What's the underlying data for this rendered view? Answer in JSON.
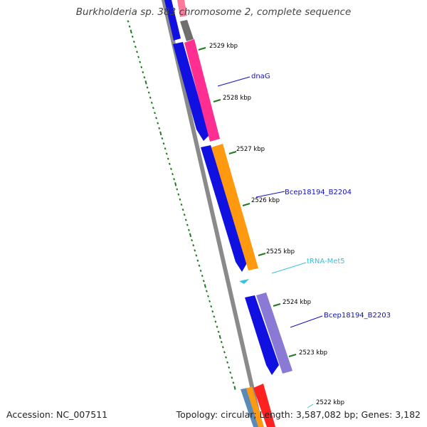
{
  "title": "Burkholderia sp. 383 chromosome 2, complete sequence",
  "footer": {
    "accession": "Accession: NC_007511",
    "topology": "Topology: circular; Length: 3,587,082 bp; Genes: 3,182"
  },
  "colors": {
    "backbone": "#808080",
    "tick": "#1f7a1f",
    "cds_reverse": "#1010e0",
    "cds_forward_orange": "#ff9a10",
    "cds_forward_pink": "#ff2f92",
    "cds_forward_purple": "#8a7ad6",
    "trna": "#35c2e0",
    "label_gene": "#1010c0",
    "label_trna": "#35c2e0"
  },
  "kbp_labels": [
    "2529 kbp",
    "2528 kbp",
    "2527 kbp",
    "2526 kbp",
    "2525 kbp",
    "2524 kbp",
    "2523 kbp",
    "2522 kbp"
  ],
  "gene_labels": {
    "dnaG": "dnaG",
    "b2204": "Bcep18194_B2204",
    "trna": "tRNA-Met5",
    "b2203": "Bcep18194_B2203"
  }
}
